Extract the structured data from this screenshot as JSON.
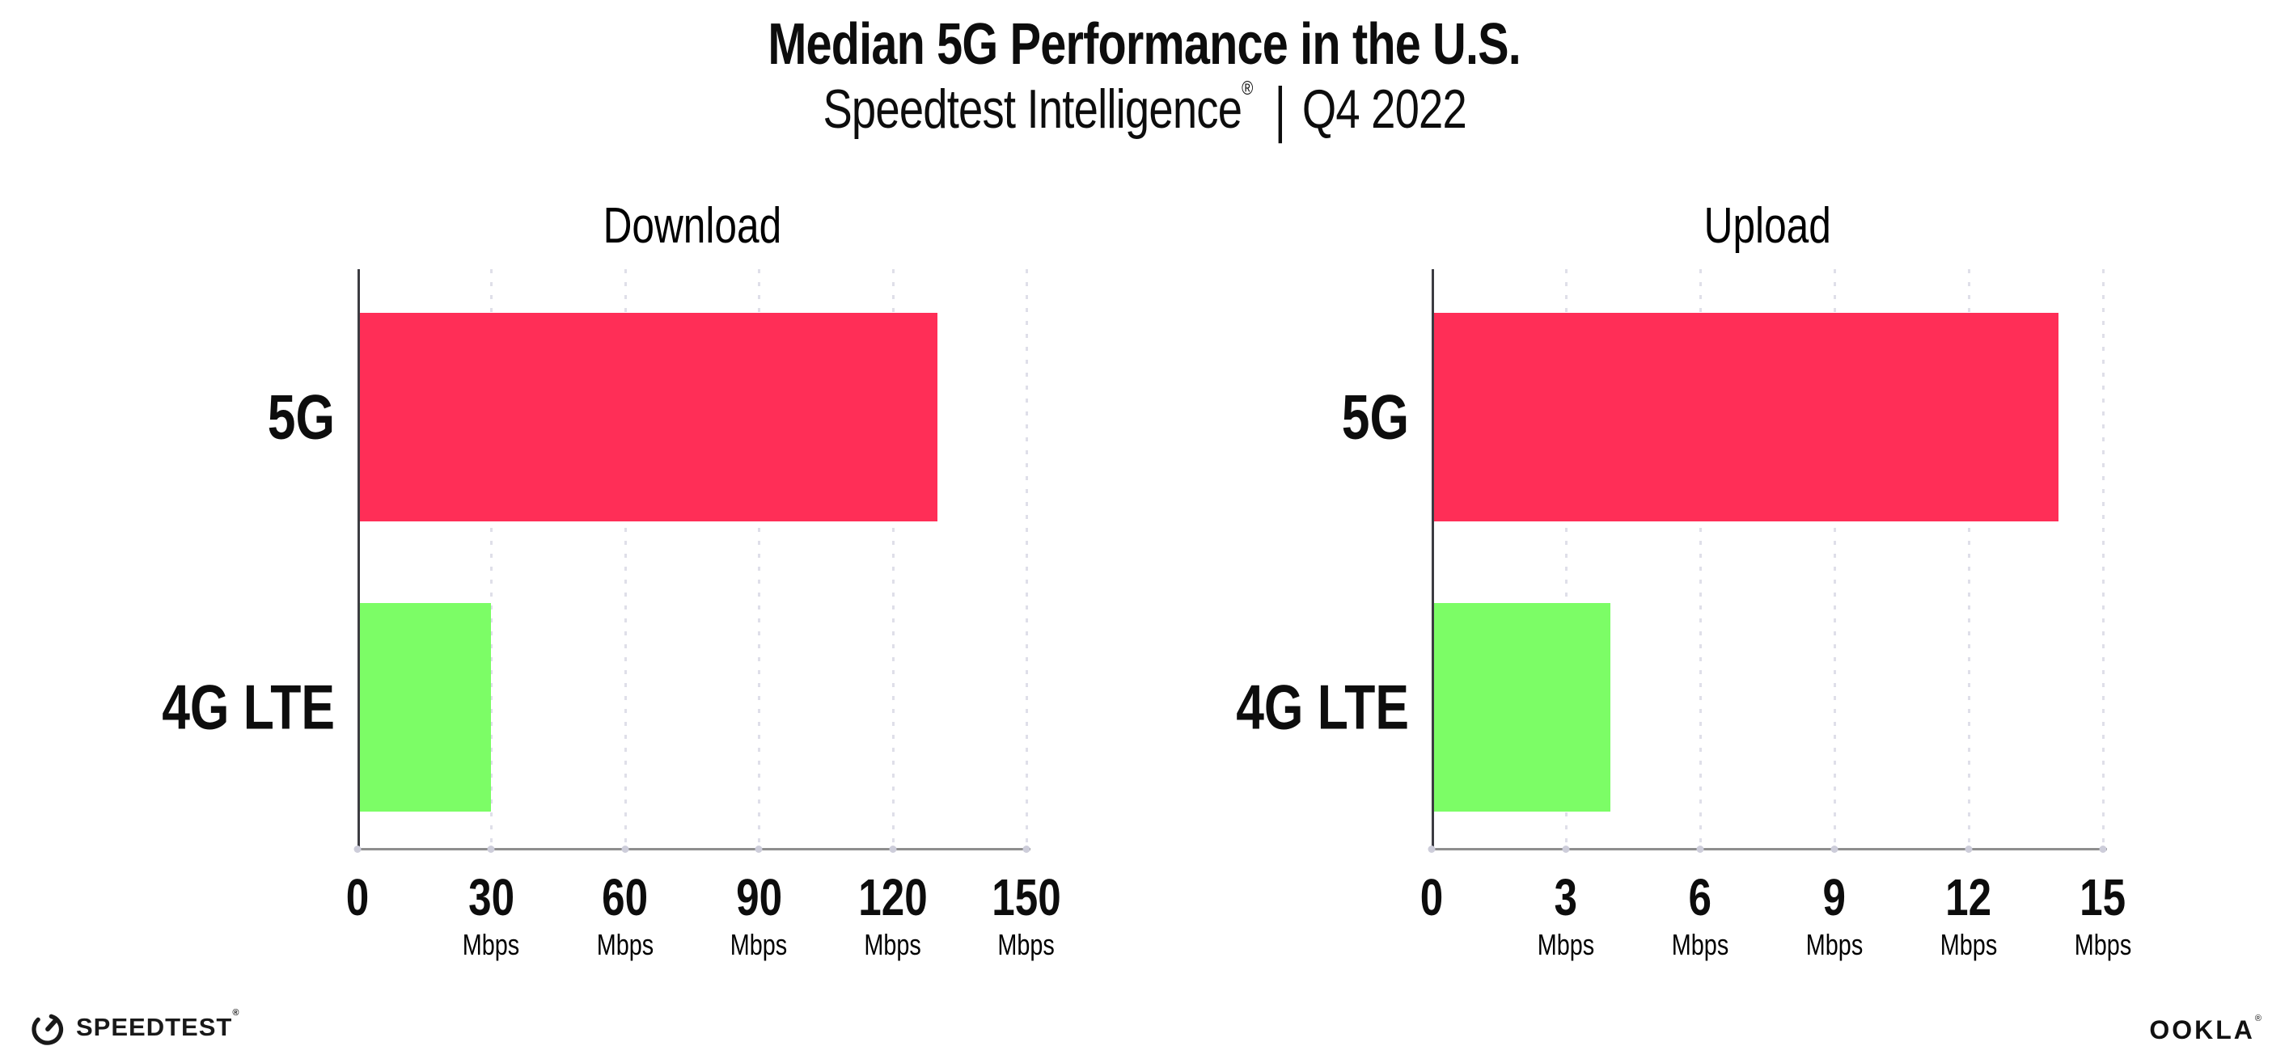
{
  "header": {
    "title": "Median 5G Performance in the U.S.",
    "subtitle": {
      "brand": "Speedtest Intelligence",
      "registered_mark": "®",
      "separator": "|",
      "period": "Q4 2022"
    }
  },
  "footer": {
    "speedtest_label": "SPEEDTEST",
    "speedtest_mark": "®",
    "ookla_label": "OOKLA",
    "ookla_mark": "®"
  },
  "colors": {
    "bar_5g": "#FF2E57",
    "bar_4g_lte": "#7CFD66",
    "x_axis_line": "#8E8E8E",
    "y_axis_line": "#3C3C42",
    "gridline": "#DFDFE9",
    "text": "#0D0D0D"
  },
  "chart_data": [
    {
      "type": "bar",
      "orientation": "horizontal",
      "title": "Download",
      "categories": [
        "5G",
        "4G LTE"
      ],
      "values": [
        130,
        30
      ],
      "colors": [
        "#FF2E57",
        "#7CFD66"
      ],
      "unit": "Mbps",
      "xlim": [
        0,
        150
      ],
      "xticks": [
        0,
        30,
        60,
        90,
        120,
        150
      ],
      "grid": "dotted-vertical",
      "legend": "none"
    },
    {
      "type": "bar",
      "orientation": "horizontal",
      "title": "Upload",
      "categories": [
        "5G",
        "4G LTE"
      ],
      "values": [
        14,
        4
      ],
      "colors": [
        "#FF2E57",
        "#7CFD66"
      ],
      "unit": "Mbps",
      "xlim": [
        0,
        15
      ],
      "xticks": [
        0,
        3,
        6,
        9,
        12,
        15
      ],
      "grid": "dotted-vertical",
      "legend": "none"
    }
  ]
}
